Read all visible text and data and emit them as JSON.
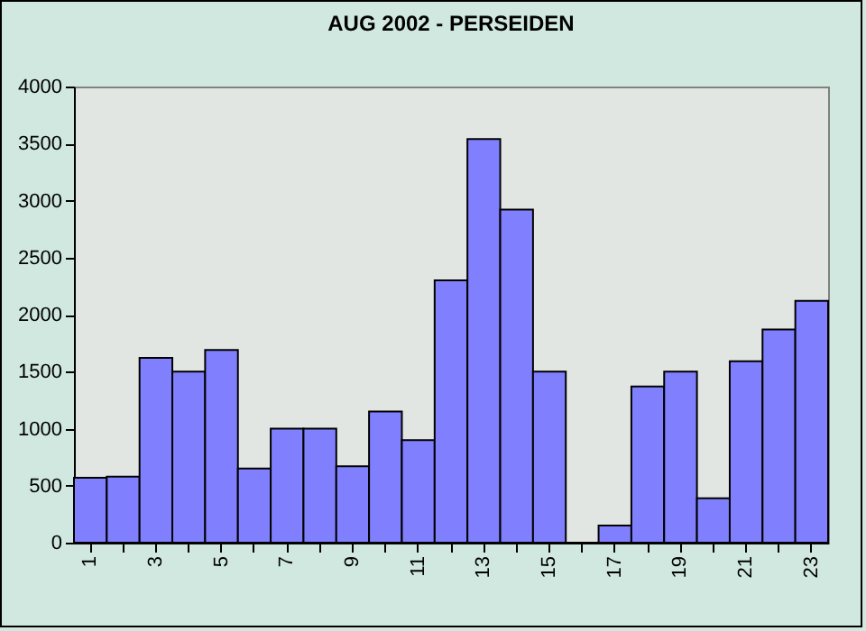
{
  "chart_data": {
    "type": "bar",
    "title": "AUG 2002 - PERSEIDEN",
    "categories": [
      "1",
      null,
      "3",
      null,
      "5",
      null,
      "7",
      null,
      "9",
      null,
      "11",
      null,
      "13",
      null,
      "15",
      null,
      "17",
      null,
      "19",
      null,
      "21",
      null,
      "23"
    ],
    "values": [
      570,
      580,
      1620,
      1500,
      1690,
      650,
      1000,
      1000,
      670,
      1150,
      900,
      2300,
      3540,
      2920,
      1500,
      0,
      150,
      1370,
      1500,
      390,
      1590,
      1870,
      2120
    ],
    "color": "#8080ff",
    "ylim": [
      0,
      4000
    ],
    "yticks": [
      0,
      500,
      1000,
      1500,
      2000,
      2500,
      3000,
      3500,
      4000
    ],
    "grid": false
  }
}
